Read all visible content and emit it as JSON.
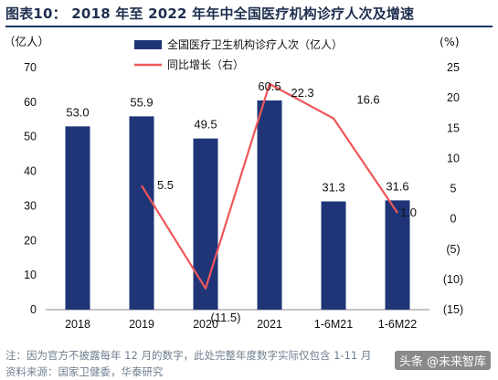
{
  "title": "图表10： 2018 年至 2022 年年中全国医疗机构诊疗人次及增速",
  "note": "注：因为官方不披露每年 12 月的数字，此处完整年度数字实际仅包含 1-11 月",
  "source": "资料来源：国家卫健委，华泰研究",
  "watermark": "头条 @未来智库",
  "colors": {
    "bar": "#1f3577",
    "line": "#f0565a",
    "title_rule": "#1f3864"
  },
  "chart_data": {
    "type": "bar",
    "categories": [
      "2018",
      "2019",
      "2020",
      "2021",
      "1-6M21",
      "1-6M22"
    ],
    "series": [
      {
        "name": "全国医疗卫生机构诊疗人次（亿人）",
        "type": "bar",
        "axis": "left",
        "values": [
          53.0,
          55.9,
          49.5,
          60.5,
          31.3,
          31.6
        ],
        "labels": [
          "53.0",
          "55.9",
          "49.5",
          "60.5",
          "31.3",
          "31.6"
        ]
      },
      {
        "name": "同比增长（右）",
        "type": "line",
        "axis": "right",
        "values": [
          null,
          5.5,
          -11.5,
          22.3,
          16.6,
          1.0
        ],
        "labels": [
          "",
          "5.5",
          "(11.5)",
          "22.3",
          "16.6",
          "1.0"
        ]
      }
    ],
    "ylabel_left": "（亿人）",
    "ylabel_right": "(%)",
    "ylim_left": [
      0,
      70
    ],
    "yticks_left": [
      0,
      10,
      20,
      30,
      40,
      50,
      60,
      70
    ],
    "ylim_right": [
      -15,
      25
    ],
    "yticks_right": [
      "(15)",
      "(10)",
      "(5)",
      "0",
      "5",
      "10",
      "15",
      "20",
      "25"
    ],
    "grid": false,
    "legend": "top-center"
  }
}
